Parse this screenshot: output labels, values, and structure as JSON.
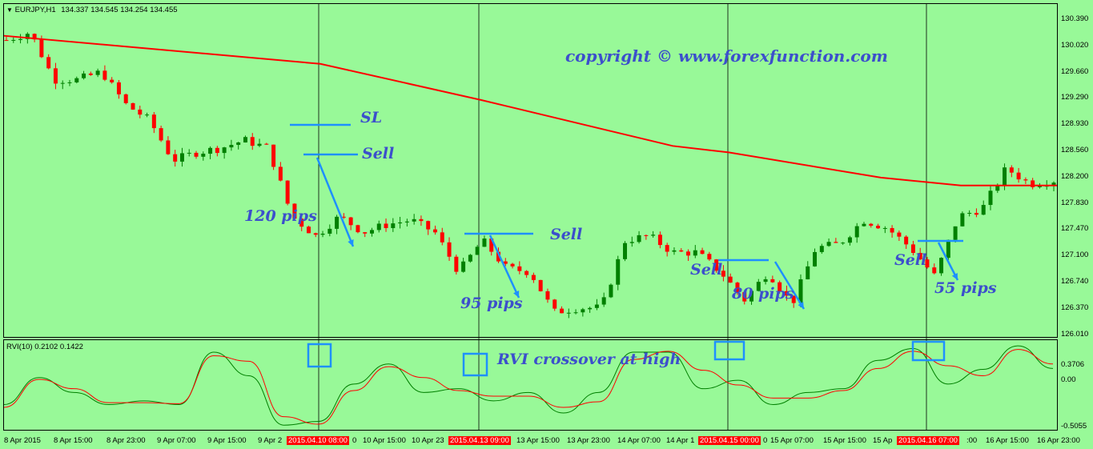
{
  "header": {
    "symbol": "EURJPY,H1",
    "ohlc": "134.337 134.545 134.254 134.455",
    "menu_icon": "triangle-down-icon"
  },
  "watermark": "copyright ©   www.forexfunction.com",
  "annotations": {
    "sl": "SL",
    "sell1": "Sell",
    "pips1": "120 pips",
    "sell2": "Sell",
    "pips2": "95 pips",
    "sell3": "Sell",
    "pips3": "80 pips",
    "sell4": "Sell",
    "pips4": "55 pips",
    "rvi_note": "RVI crossover at high"
  },
  "rvi": {
    "label": "RVI(10) 0.2102 0.1422",
    "ticks": [
      "0.3706",
      "0.00",
      "-0.5055"
    ]
  },
  "price_ticks": [
    "130.390",
    "130.020",
    "129.660",
    "129.290",
    "128.930",
    "128.560",
    "128.200",
    "127.830",
    "127.470",
    "127.100",
    "126.740",
    "126.370",
    "126.010"
  ],
  "time_labels": [
    "8 Apr 2015",
    "8 Apr 15:00",
    "8 Apr 23:00",
    "9 Apr 07:00",
    "9 Apr 15:00",
    "9 Apr 2",
    "0",
    "10 Apr 15:00",
    "10 Apr 23",
    "13 Apr 15:00",
    "13 Apr 23:00",
    "14 Apr 07:00",
    "14 Apr 1",
    "0",
    "15 Apr 07:00",
    "15 Apr 15:00",
    "15 Ap",
    ":00",
    "16 Apr 15:00",
    "16 Apr 23:00"
  ],
  "marked_times": [
    "2015.04.10 08:00",
    "2015.04.13 09:00",
    "2015.04.15 00:00",
    "2015.04.16 07:00"
  ],
  "colors": {
    "background": "#98f998",
    "bull": "#008000",
    "bear": "#ff0000",
    "ma": "#ff0000",
    "rvi_main": "#008000",
    "rvi_signal": "#ff0000",
    "markup": "#1e90ff",
    "text_annotation": "#3c4fcc"
  },
  "chart_data": [
    {
      "type": "candlestick",
      "title": "EURJPY,H1",
      "ylim": [
        126.01,
        130.39
      ],
      "grid": false,
      "approx_close_path": [
        130.1,
        130.21,
        129.55,
        129.55,
        129.66,
        129.21,
        128.99,
        128.43,
        128.54,
        128.6,
        128.71,
        128.6,
        127.65,
        127.38,
        127.65,
        127.43,
        127.54,
        127.6,
        127.43,
        126.88,
        127.32,
        126.93,
        126.88,
        126.32,
        126.38,
        126.38,
        127.32,
        127.38,
        127.15,
        127.15,
        126.88,
        126.49,
        126.88,
        126.43,
        127.21,
        127.27,
        127.6,
        127.49,
        127.21,
        126.82,
        127.65,
        127.76,
        128.32,
        128.1,
        128.15
      ],
      "moving_average_path": [
        130.16,
        129.77,
        129.27,
        128.63,
        128.54,
        128.19,
        128.08,
        128.08
      ]
    },
    {
      "type": "line",
      "title": "RVI(10)",
      "ylim": [
        -0.5055,
        0.3706
      ],
      "series": [
        {
          "values": [
            -0.27,
            0.02,
            -0.14,
            -0.27,
            -0.23,
            -0.27,
            0.3,
            0.04,
            -0.49,
            -0.45,
            -0.05,
            0.17,
            -0.14,
            -0.1,
            -0.23,
            -0.14,
            -0.36,
            -0.14,
            0.3,
            0.3,
            -0.1,
            -0.01,
            -0.27,
            -0.14,
            -0.1,
            0.21,
            0.34,
            -0.05,
            0.11,
            0.37,
            0.12
          ]
        },
        {
          "values": [
            -0.3,
            0.0,
            -0.1,
            -0.25,
            -0.25,
            -0.26,
            0.26,
            0.2,
            -0.4,
            -0.48,
            -0.12,
            0.14,
            0.02,
            -0.12,
            -0.18,
            -0.18,
            -0.3,
            -0.24,
            0.22,
            0.31,
            0.1,
            -0.06,
            -0.2,
            -0.2,
            -0.12,
            0.12,
            0.31,
            0.15,
            0.04,
            0.33,
            0.17
          ]
        }
      ]
    }
  ]
}
